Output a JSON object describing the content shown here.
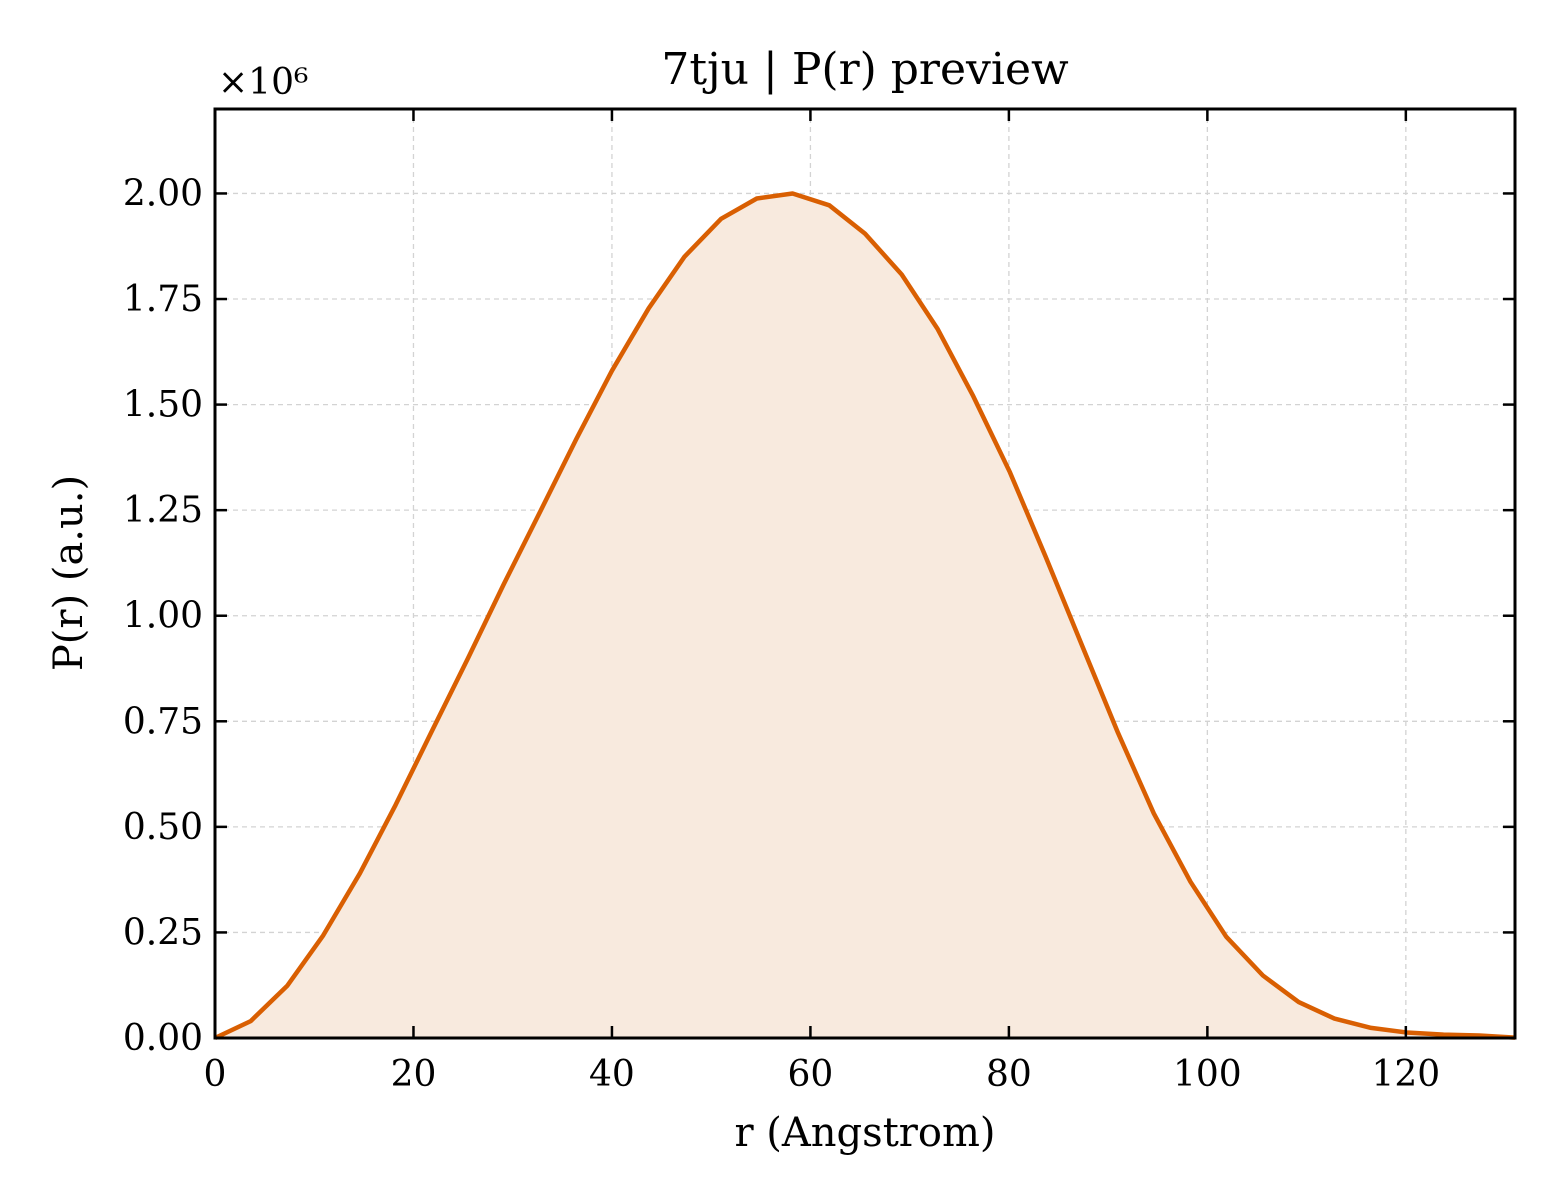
{
  "chart_data": {
    "type": "area",
    "title": "7tju | P(r) preview",
    "xlabel": "r (Angstrom)",
    "ylabel": "P(r) (a.u.)",
    "y_offset_label": "×10⁶",
    "xlim": [
      0,
      131
    ],
    "ylim": [
      0,
      2.2
    ],
    "x_ticks": [
      0,
      20,
      40,
      60,
      80,
      100,
      120
    ],
    "x_tick_labels": [
      "0",
      "20",
      "40",
      "60",
      "80",
      "100",
      "120"
    ],
    "y_ticks": [
      0,
      0.25,
      0.5,
      0.75,
      1.0,
      1.25,
      1.5,
      1.75,
      2.0
    ],
    "y_tick_labels": [
      "0.00",
      "0.25",
      "0.50",
      "0.75",
      "1.00",
      "1.25",
      "1.50",
      "1.75",
      "2.00"
    ],
    "grid": true,
    "colors": {
      "line": "#d95f02",
      "fill": "#f8eade"
    },
    "series": [
      {
        "x": [
          0,
          3.6,
          7.3,
          10.9,
          14.6,
          18.2,
          21.8,
          25.5,
          29.1,
          32.8,
          36.4,
          40.0,
          43.7,
          47.3,
          51.0,
          54.6,
          58.2,
          61.9,
          65.5,
          69.2,
          72.8,
          76.4,
          80.1,
          83.7,
          87.4,
          91.0,
          94.6,
          98.3,
          101.9,
          105.6,
          109.2,
          112.8,
          116.5,
          120.1,
          123.8,
          127.4,
          131.0
        ],
        "values": [
          0.0,
          0.04,
          0.124,
          0.243,
          0.39,
          0.552,
          0.724,
          0.9,
          1.075,
          1.248,
          1.418,
          1.58,
          1.728,
          1.85,
          1.94,
          1.988,
          2.0,
          1.972,
          1.905,
          1.808,
          1.68,
          1.52,
          1.34,
          1.14,
          0.928,
          0.722,
          0.532,
          0.37,
          0.24,
          0.148,
          0.085,
          0.046,
          0.024,
          0.013,
          0.008,
          0.006,
          0.001
        ]
      }
    ]
  }
}
